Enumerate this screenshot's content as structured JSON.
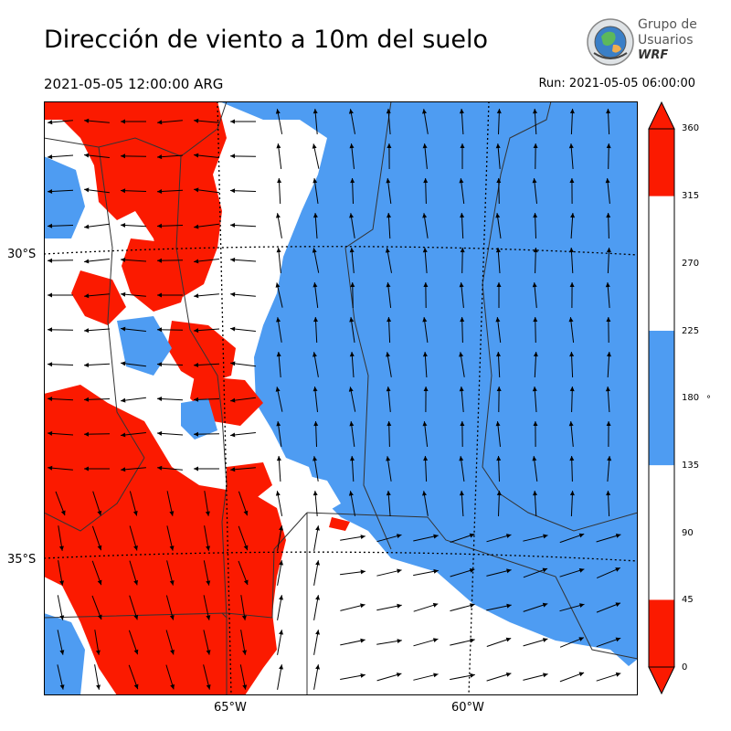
{
  "header": {
    "title": "Dirección de viento a 10m del suelo",
    "valid_time": "2021-05-05 12:00:00 ARG",
    "run_time": "Run: 2021-05-05 06:00:00"
  },
  "logo": {
    "line1": "Grupo de",
    "line2": "Usuarios",
    "line3": "WRF"
  },
  "map": {
    "latitude_labels": [
      "30°S",
      "35°S"
    ],
    "longitude_labels": [
      "65°W",
      "60°W"
    ],
    "colors": {
      "red": "#fb1a00",
      "blue": "#4e9cf2",
      "white": "#ffffff",
      "border": "#333333",
      "graticule": "#000000"
    },
    "field_description_colors": {
      "north_sector": "red",
      "south_sector": "blue",
      "east_west_sectors": "white"
    }
  },
  "colorbar": {
    "ticks": [
      "0",
      "45",
      "90",
      "135",
      "180",
      "225",
      "270",
      "315",
      "360"
    ],
    "unit": "°",
    "segments": [
      "red",
      "white",
      "white",
      "blue",
      "blue",
      "white",
      "white",
      "red"
    ]
  }
}
